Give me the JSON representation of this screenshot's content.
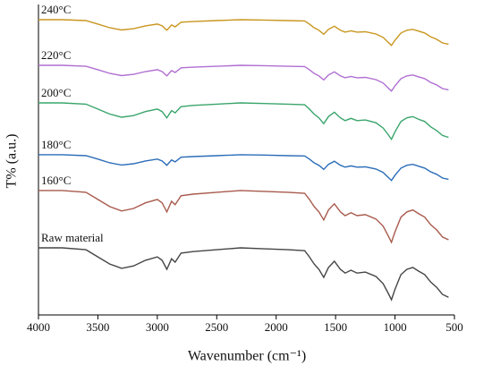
{
  "chart_data": {
    "type": "line",
    "x_label": "Wavenumber (cm⁻¹)",
    "y_label": "T% (a.u.)",
    "xlim": [
      4000,
      500
    ],
    "xticks": [
      4000,
      3500,
      3000,
      2500,
      2000,
      1500,
      1000,
      500
    ],
    "ylim": [
      0,
      100
    ],
    "x": [
      4000,
      3800,
      3600,
      3500,
      3400,
      3300,
      3200,
      3100,
      3000,
      2960,
      2920,
      2880,
      2850,
      2800,
      2700,
      2500,
      2300,
      2100,
      1900,
      1760,
      1720,
      1680,
      1640,
      1600,
      1560,
      1510,
      1460,
      1420,
      1370,
      1320,
      1250,
      1160,
      1100,
      1060,
      1030,
      1000,
      950,
      900,
      850,
      800,
      750,
      700,
      650,
      600,
      550
    ],
    "series": [
      {
        "name": "Raw material",
        "color": "#454545",
        "values": [
          21.6,
          21.6,
          21.0,
          18.7,
          16.4,
          15.0,
          15.8,
          17.6,
          18.7,
          17.6,
          14.7,
          18.1,
          17.0,
          19.9,
          20.4,
          21.0,
          21.6,
          21.3,
          21.0,
          20.7,
          18.7,
          16.4,
          14.7,
          12.1,
          15.3,
          17.3,
          14.7,
          13.5,
          14.4,
          13.5,
          13.8,
          12.4,
          10.1,
          7.2,
          4.9,
          8.3,
          13.0,
          14.7,
          15.3,
          14.1,
          13.0,
          10.6,
          8.9,
          6.6,
          5.7
        ]
      },
      {
        "name": "160°C",
        "color": "#a85a4c",
        "values": [
          40.1,
          40.1,
          39.5,
          37.2,
          34.9,
          33.5,
          34.3,
          36.1,
          37.2,
          36.1,
          33.2,
          36.6,
          35.5,
          38.4,
          38.9,
          39.5,
          40.1,
          39.8,
          39.5,
          39.2,
          37.2,
          34.9,
          33.2,
          30.6,
          33.8,
          35.8,
          33.2,
          32.0,
          32.9,
          32.0,
          32.3,
          30.9,
          28.6,
          25.7,
          23.4,
          26.8,
          31.5,
          33.2,
          33.8,
          32.6,
          31.5,
          29.1,
          27.4,
          25.1,
          24.2
        ]
      },
      {
        "name": "180°C",
        "color": "#2b6db8",
        "values": [
          51.6,
          51.6,
          51.3,
          50.2,
          49.0,
          48.3,
          48.7,
          49.6,
          50.2,
          49.6,
          48.2,
          49.9,
          49.3,
          50.8,
          51.0,
          51.3,
          51.6,
          51.5,
          51.3,
          51.2,
          50.2,
          49.0,
          48.2,
          46.9,
          48.5,
          49.5,
          48.2,
          47.6,
          48.0,
          47.6,
          47.7,
          47.0,
          45.9,
          44.4,
          43.3,
          45.0,
          47.3,
          48.2,
          48.5,
          47.9,
          47.3,
          46.1,
          45.3,
          44.1,
          43.7
        ]
      },
      {
        "name": "200°C",
        "color": "#3aa56c",
        "values": [
          68.3,
          68.3,
          67.9,
          66.3,
          64.7,
          63.7,
          64.2,
          65.5,
          66.3,
          65.5,
          63.5,
          65.8,
          65.1,
          67.1,
          67.5,
          67.9,
          68.3,
          68.1,
          67.9,
          67.7,
          66.3,
          64.7,
          63.5,
          61.6,
          63.9,
          65.3,
          63.5,
          62.6,
          63.3,
          62.6,
          62.8,
          61.9,
          60.2,
          58.2,
          56.6,
          59.0,
          62.3,
          63.5,
          63.9,
          63.0,
          62.3,
          60.6,
          59.4,
          57.8,
          57.2
        ]
      },
      {
        "name": "220°C",
        "color": "#b06fd2",
        "values": [
          80.4,
          80.4,
          80.1,
          79.0,
          77.8,
          77.1,
          77.5,
          78.4,
          79.0,
          78.4,
          77.0,
          78.7,
          78.1,
          79.6,
          79.8,
          80.1,
          80.4,
          80.3,
          80.1,
          80.0,
          79.0,
          77.8,
          77.0,
          75.7,
          77.3,
          78.3,
          77.0,
          76.4,
          76.8,
          76.4,
          76.5,
          75.8,
          74.7,
          73.2,
          72.1,
          73.8,
          76.1,
          77.0,
          77.3,
          76.7,
          76.1,
          74.9,
          74.1,
          72.9,
          72.5
        ]
      },
      {
        "name": "240°C",
        "color": "#c9961f",
        "values": [
          95.1,
          95.1,
          94.8,
          93.7,
          92.5,
          91.8,
          92.2,
          93.1,
          93.7,
          93.1,
          91.7,
          93.4,
          92.8,
          94.3,
          94.5,
          94.8,
          95.1,
          95.0,
          94.8,
          94.7,
          93.7,
          92.5,
          91.7,
          90.4,
          92.0,
          93.0,
          91.7,
          91.1,
          91.5,
          91.1,
          91.2,
          90.5,
          89.4,
          87.9,
          86.8,
          88.5,
          90.8,
          91.7,
          92.0,
          91.4,
          90.8,
          89.6,
          88.8,
          87.6,
          87.2
        ]
      }
    ]
  }
}
